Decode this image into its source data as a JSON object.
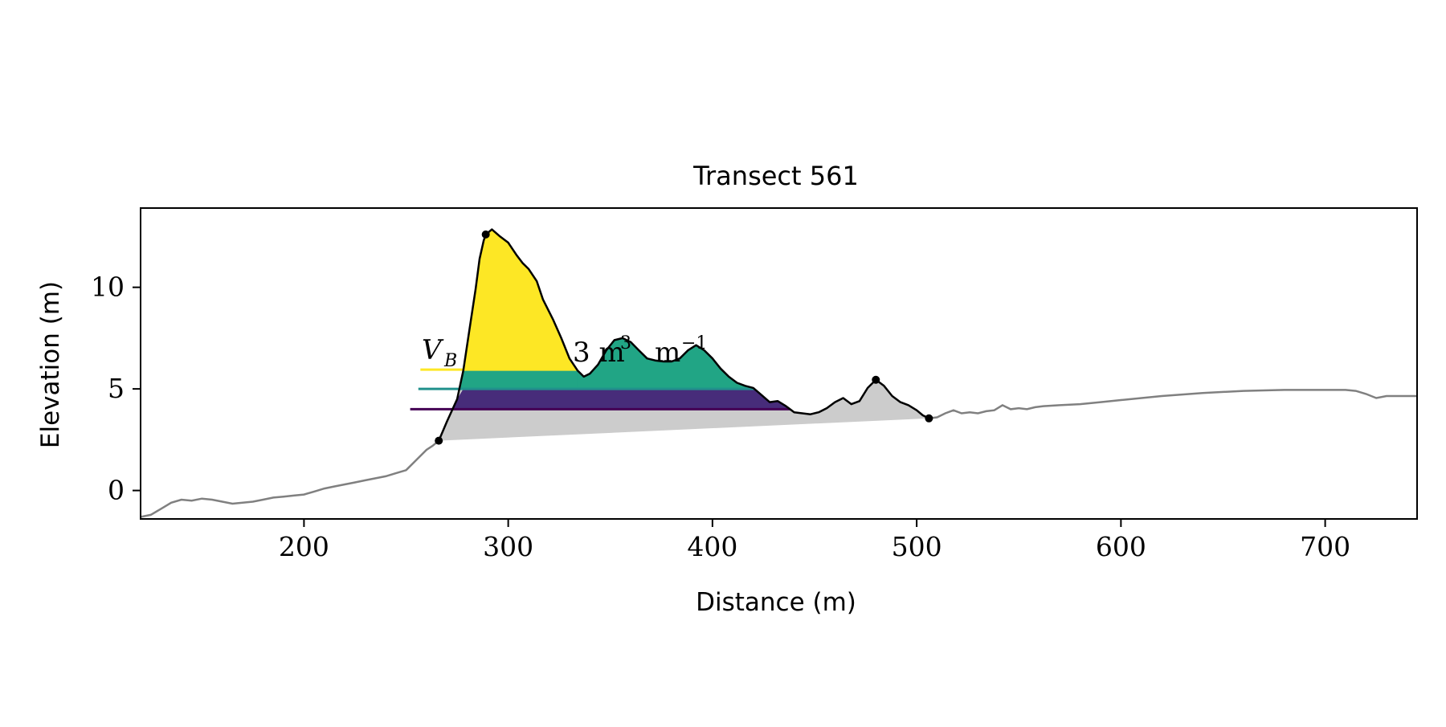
{
  "chart_data": {
    "type": "area",
    "title": "Transect 561",
    "xlabel": "Distance (m)",
    "ylabel": "Elevation (m)",
    "xlim": [
      120,
      745
    ],
    "ylim": [
      -1.4,
      13.9
    ],
    "x_ticks": [
      200,
      300,
      400,
      500,
      600,
      700
    ],
    "y_ticks": [
      0,
      5,
      10
    ],
    "grid": false,
    "annotation": {
      "prefix": "V",
      "subscript": "B",
      "middle": "3 m",
      "sup1": "3",
      "unit2": "m",
      "sup2": "−1"
    },
    "colors": {
      "profile": "#808080",
      "dune_outline": "#000000",
      "base_fill": "#cccccc",
      "upper_fill": "#fde725",
      "middle_fill": "#21a585",
      "lower_fill": "#472c7a",
      "upper_line": "#fde725",
      "middle_line": "#21918c",
      "lower_line": "#440154"
    },
    "levels": [
      {
        "name": "upper",
        "y": 5.95,
        "x_start": 257
      },
      {
        "name": "middle",
        "y": 5.0,
        "x_start": 256
      },
      {
        "name": "lower",
        "y": 4.0,
        "x_start": 252
      }
    ],
    "key_points": [
      {
        "x": 266,
        "y": 2.45
      },
      {
        "x": 289,
        "y": 12.6
      },
      {
        "x": 480,
        "y": 5.45
      },
      {
        "x": 506,
        "y": 3.55
      }
    ],
    "profile": {
      "x": [
        120,
        125,
        130,
        135,
        140,
        145,
        150,
        155,
        160,
        165,
        170,
        175,
        180,
        185,
        190,
        195,
        200,
        205,
        210,
        215,
        220,
        225,
        230,
        235,
        240,
        245,
        250,
        255,
        260,
        263,
        266
      ],
      "y": [
        -1.3,
        -1.2,
        -0.9,
        -0.6,
        -0.45,
        -0.5,
        -0.4,
        -0.45,
        -0.55,
        -0.65,
        -0.6,
        -0.55,
        -0.45,
        -0.35,
        -0.3,
        -0.25,
        -0.2,
        -0.05,
        0.1,
        0.2,
        0.3,
        0.4,
        0.5,
        0.6,
        0.7,
        0.85,
        1.0,
        1.5,
        2.0,
        2.2,
        2.45
      ]
    },
    "dune": {
      "x": [
        266,
        270,
        275,
        278,
        281,
        284,
        286,
        288,
        289,
        292,
        296,
        300,
        304,
        307,
        310,
        314,
        317,
        322,
        326,
        330,
        334,
        337,
        340,
        344,
        348,
        352,
        356,
        360,
        364,
        368,
        372,
        376,
        380,
        384,
        388,
        392,
        396,
        400,
        404,
        408,
        412,
        416,
        420,
        424,
        428,
        432,
        436,
        440,
        444,
        448,
        452,
        456,
        460,
        464,
        468,
        472,
        476,
        480,
        484,
        488,
        492,
        496,
        500,
        503,
        506
      ],
      "y": [
        2.45,
        3.4,
        4.5,
        5.9,
        7.9,
        9.9,
        11.4,
        12.3,
        12.6,
        12.85,
        12.5,
        12.2,
        11.6,
        11.2,
        10.9,
        10.3,
        9.4,
        8.4,
        7.5,
        6.5,
        5.9,
        5.6,
        5.75,
        6.2,
        6.9,
        7.4,
        7.5,
        7.3,
        6.9,
        6.5,
        6.4,
        6.35,
        6.35,
        6.5,
        6.9,
        7.15,
        6.9,
        6.5,
        6.0,
        5.6,
        5.3,
        5.15,
        5.05,
        4.7,
        4.35,
        4.4,
        4.15,
        3.85,
        3.8,
        3.75,
        3.85,
        4.05,
        4.35,
        4.55,
        4.25,
        4.4,
        5.05,
        5.45,
        5.15,
        4.65,
        4.35,
        4.2,
        3.95,
        3.7,
        3.55
      ]
    },
    "profile_after": {
      "x": [
        506,
        510,
        514,
        518,
        522,
        526,
        530,
        534,
        538,
        542,
        546,
        550,
        554,
        558,
        562,
        570,
        580,
        590,
        600,
        620,
        640,
        660,
        680,
        700,
        710,
        715,
        720,
        725,
        730,
        735,
        740,
        745
      ],
      "y": [
        3.55,
        3.6,
        3.8,
        3.95,
        3.8,
        3.85,
        3.8,
        3.9,
        3.95,
        4.2,
        4.0,
        4.05,
        4.0,
        4.1,
        4.15,
        4.2,
        4.25,
        4.35,
        4.45,
        4.65,
        4.8,
        4.9,
        4.95,
        4.95,
        4.95,
        4.9,
        4.75,
        4.55,
        4.65,
        4.65,
        4.65,
        4.65
      ]
    }
  }
}
